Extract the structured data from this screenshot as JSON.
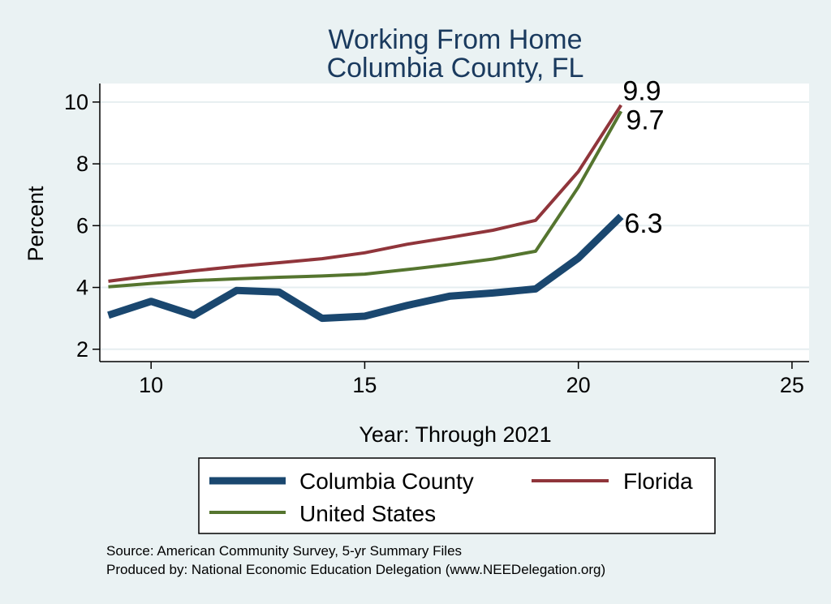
{
  "chart_data": {
    "type": "line",
    "title": [
      "Working From Home",
      "Columbia County, FL"
    ],
    "xlabel": "Year: Through 2021",
    "ylabel": "Percent",
    "xlim": [
      8.8,
      25.4
    ],
    "ylim": [
      1.6,
      10.6
    ],
    "xticks": [
      10,
      15,
      20,
      25
    ],
    "yticks": [
      2,
      4,
      6,
      8,
      10
    ],
    "grid": true,
    "legend_position": "bottom",
    "series": [
      {
        "name": "Columbia County",
        "color": "#1a476f",
        "width": 9,
        "x": [
          9,
          10,
          11,
          12,
          13,
          14,
          15,
          16,
          17,
          18,
          19,
          20,
          21
        ],
        "values": [
          3.1,
          3.55,
          3.1,
          3.9,
          3.85,
          3.0,
          3.07,
          3.42,
          3.72,
          3.82,
          3.95,
          4.95,
          6.3
        ],
        "end_label": "6.3"
      },
      {
        "name": "Florida",
        "color": "#90353b",
        "width": 4,
        "x": [
          9,
          10,
          11,
          12,
          13,
          14,
          15,
          16,
          17,
          18,
          19,
          20,
          21
        ],
        "values": [
          4.2,
          4.38,
          4.54,
          4.68,
          4.8,
          4.93,
          5.12,
          5.4,
          5.62,
          5.85,
          6.17,
          7.75,
          9.9
        ],
        "end_label": "9.9"
      },
      {
        "name": "United States",
        "color": "#55752f",
        "width": 4,
        "x": [
          9,
          10,
          11,
          12,
          13,
          14,
          15,
          16,
          17,
          18,
          19,
          20,
          21
        ],
        "values": [
          4.02,
          4.13,
          4.22,
          4.28,
          4.33,
          4.37,
          4.43,
          4.58,
          4.74,
          4.92,
          5.17,
          7.25,
          9.7
        ],
        "end_label": "9.7"
      }
    ],
    "notes": [
      "Source: American Community Survey, 5-yr Summary Files",
      "Produced by: National Economic Education Delegation (www.NEEDelegation.org)"
    ]
  }
}
